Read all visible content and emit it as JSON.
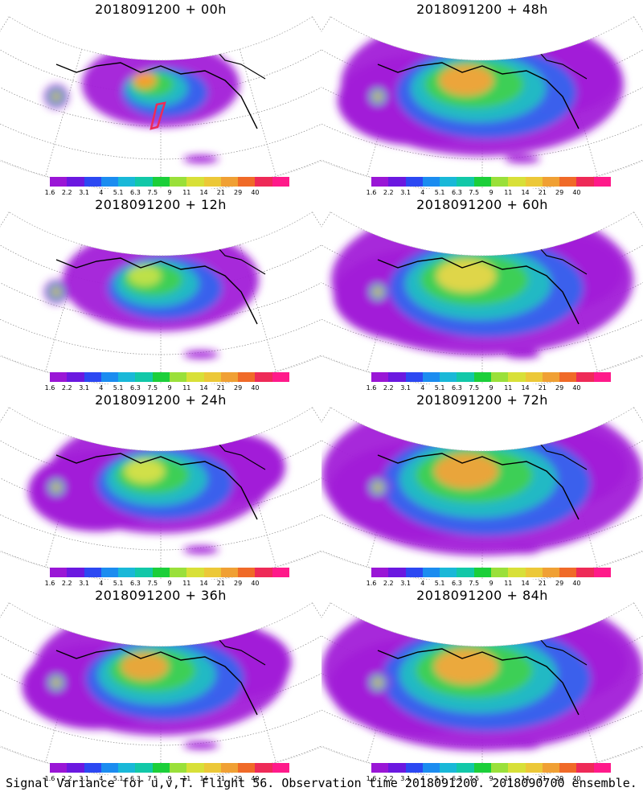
{
  "panels": [
    {
      "title": "2018091200 + 00h",
      "blob_level": 0.15,
      "peak_color": "#ff9d2a",
      "show_box": true
    },
    {
      "title": "2018091200 + 48h",
      "blob_level": 0.8,
      "peak_color": "#f6a23a",
      "show_box": false
    },
    {
      "title": "2018091200 + 12h",
      "blob_level": 0.35,
      "peak_color": "#c4e24a",
      "show_box": false
    },
    {
      "title": "2018091200 + 60h",
      "blob_level": 0.9,
      "peak_color": "#e8d64a",
      "show_box": false
    },
    {
      "title": "2018091200 + 24h",
      "blob_level": 0.5,
      "peak_color": "#d8e048",
      "show_box": false
    },
    {
      "title": "2018091200 + 72h",
      "blob_level": 1.0,
      "peak_color": "#f2a23a",
      "show_box": false
    },
    {
      "title": "2018091200 + 36h",
      "blob_level": 0.65,
      "peak_color": "#f0a43a",
      "show_box": false
    },
    {
      "title": "2018091200 + 84h",
      "blob_level": 1.0,
      "peak_color": "#f4a63c",
      "show_box": false
    }
  ],
  "colorbar": {
    "labels": [
      "1.6",
      "2.2",
      "3.1",
      "4",
      "5.1",
      "6.3",
      "7.5",
      "9",
      "11",
      "14",
      "21",
      "29",
      "40"
    ],
    "colors": [
      "#9a16d6",
      "#6b18e0",
      "#2c48f2",
      "#1b8cf0",
      "#19b8d8",
      "#12c8a8",
      "#1ccf3a",
      "#9ae03a",
      "#d8e038",
      "#ecc838",
      "#f0a034",
      "#f06a28",
      "#ee2a58",
      "#ff1a8a"
    ]
  },
  "footer": "Signal Variance for u,v,T. Flight 56. Observation time 2018091200. 2018090700 ensemble."
}
